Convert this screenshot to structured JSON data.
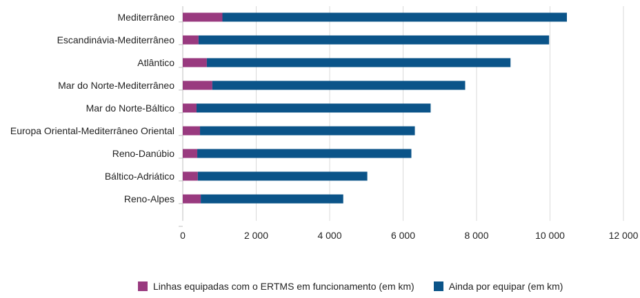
{
  "chart_data": {
    "type": "bar",
    "orientation": "horizontal",
    "stacked": true,
    "categories": [
      "Mediterrâneo",
      "Escandinávia-Mediterrâneo",
      "Atlântico",
      "Mar do Norte-Mediterrâneo",
      "Mar do Norte-Báltico",
      "Europa Oriental-Mediterrâneo Oriental",
      "Reno-Danúbio",
      "Báltico-Adriático",
      "Reno-Alpes"
    ],
    "series": [
      {
        "name": "Linhas equipadas com o ERTMS em funcionamento (em km)",
        "color": "#993a7f",
        "values": [
          1080,
          430,
          655,
          805,
          375,
          470,
          395,
          410,
          490
        ]
      },
      {
        "name": "Ainda por equipar (em km)",
        "color": "#0b5489",
        "values": [
          9380,
          9545,
          8270,
          6885,
          6375,
          5850,
          5830,
          4615,
          3880
        ]
      }
    ],
    "xlim": [
      0,
      12000
    ],
    "xticks": [
      0,
      2000,
      4000,
      6000,
      8000,
      10000,
      12000
    ],
    "xtick_labels": [
      "0",
      "2 000",
      "4 000",
      "6 000",
      "8 000",
      "10 000",
      "12 000"
    ],
    "grid": true,
    "legend": "bottom",
    "title": "",
    "xlabel": "",
    "ylabel": ""
  }
}
